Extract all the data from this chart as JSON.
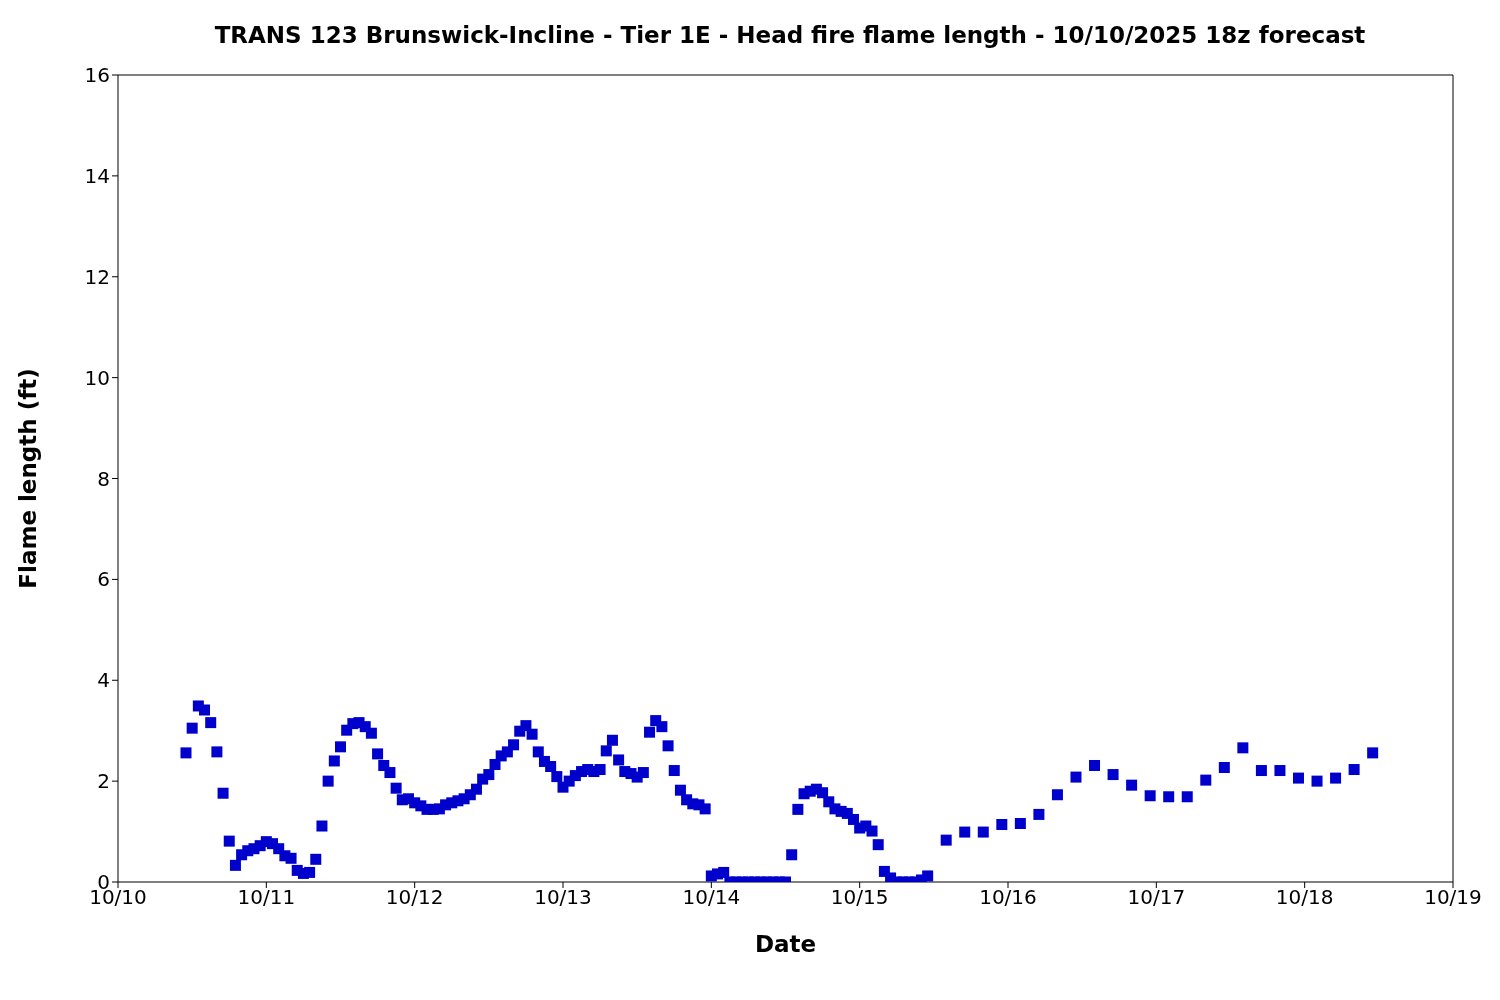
{
  "chart_data": {
    "type": "scatter",
    "title": "TRANS 123 Brunswick-Incline - Tier 1E - Head fire flame length - 10/10/2025 18z forecast",
    "xlabel": "Date",
    "ylabel": "Flame length (ft)",
    "x": [
      "--10-10T11:00",
      "--10-10T12:00",
      "--10-10T13:00",
      "--10-10T14:00",
      "--10-10T15:00",
      "--10-10T16:00",
      "--10-10T17:00",
      "--10-10T18:00",
      "--10-10T19:00",
      "--10-10T20:00",
      "--10-10T21:00",
      "--10-10T22:00",
      "--10-10T23:00",
      "--10-11T00:00",
      "--10-11T01:00",
      "--10-11T02:00",
      "--10-11T03:00",
      "--10-11T04:00",
      "--10-11T05:00",
      "--10-11T06:00",
      "--10-11T07:00",
      "--10-11T08:00",
      "--10-11T09:00",
      "--10-11T10:00",
      "--10-11T11:00",
      "--10-11T12:00",
      "--10-11T13:00",
      "--10-11T14:00",
      "--10-11T15:00",
      "--10-11T16:00",
      "--10-11T17:00",
      "--10-11T18:00",
      "--10-11T19:00",
      "--10-11T20:00",
      "--10-11T21:00",
      "--10-11T22:00",
      "--10-11T23:00",
      "--10-12T00:00",
      "--10-12T01:00",
      "--10-12T02:00",
      "--10-12T03:00",
      "--10-12T04:00",
      "--10-12T05:00",
      "--10-12T06:00",
      "--10-12T07:00",
      "--10-12T08:00",
      "--10-12T09:00",
      "--10-12T10:00",
      "--10-12T11:00",
      "--10-12T12:00",
      "--10-12T13:00",
      "--10-12T14:00",
      "--10-12T15:00",
      "--10-12T16:00",
      "--10-12T17:00",
      "--10-12T18:00",
      "--10-12T19:00",
      "--10-12T20:00",
      "--10-12T21:00",
      "--10-12T22:00",
      "--10-12T23:00",
      "--10-13T00:00",
      "--10-13T01:00",
      "--10-13T02:00",
      "--10-13T03:00",
      "--10-13T04:00",
      "--10-13T05:00",
      "--10-13T06:00",
      "--10-13T07:00",
      "--10-13T08:00",
      "--10-13T09:00",
      "--10-13T10:00",
      "--10-13T11:00",
      "--10-13T12:00",
      "--10-13T13:00",
      "--10-13T14:00",
      "--10-13T15:00",
      "--10-13T16:00",
      "--10-13T17:00",
      "--10-13T18:00",
      "--10-13T19:00",
      "--10-13T20:00",
      "--10-13T21:00",
      "--10-13T22:00",
      "--10-13T23:00",
      "--10-14T00:00",
      "--10-14T01:00",
      "--10-14T02:00",
      "--10-14T03:00",
      "--10-14T04:00",
      "--10-14T05:00",
      "--10-14T06:00",
      "--10-14T07:00",
      "--10-14T08:00",
      "--10-14T09:00",
      "--10-14T10:00",
      "--10-14T11:00",
      "--10-14T12:00",
      "--10-14T13:00",
      "--10-14T14:00",
      "--10-14T15:00",
      "--10-14T16:00",
      "--10-14T17:00",
      "--10-14T18:00",
      "--10-14T19:00",
      "--10-14T20:00",
      "--10-14T21:00",
      "--10-14T22:00",
      "--10-14T23:00",
      "--10-15T00:00",
      "--10-15T01:00",
      "--10-15T02:00",
      "--10-15T03:00",
      "--10-15T04:00",
      "--10-15T05:00",
      "--10-15T06:00",
      "--10-15T07:00",
      "--10-15T08:00",
      "--10-15T09:00",
      "--10-15T10:00",
      "--10-15T11:00",
      "--10-15T14:00",
      "--10-15T17:00",
      "--10-15T20:00",
      "--10-15T23:00",
      "--10-16T02:00",
      "--10-16T05:00",
      "--10-16T08:00",
      "--10-16T11:00",
      "--10-16T14:00",
      "--10-16T17:00",
      "--10-16T20:00",
      "--10-16T23:00",
      "--10-17T02:00",
      "--10-17T05:00",
      "--10-17T08:00",
      "--10-17T11:00",
      "--10-17T14:00",
      "--10-17T17:00",
      "--10-17T20:00",
      "--10-17T23:00",
      "--10-18T02:00",
      "--10-18T05:00",
      "--10-18T08:00",
      "--10-18T11:00"
    ],
    "series": [
      {
        "color": "#0000cc",
        "values": [
          2.56,
          3.05,
          3.49,
          3.41,
          3.16,
          2.58,
          1.76,
          0.81,
          0.33,
          0.54,
          0.62,
          0.66,
          0.72,
          0.8,
          0.76,
          0.66,
          0.52,
          0.47,
          0.23,
          0.17,
          0.19,
          0.45,
          1.11,
          2.0,
          2.4,
          2.68,
          3.01,
          3.14,
          3.16,
          3.08,
          2.95,
          2.54,
          2.31,
          2.17,
          1.86,
          1.63,
          1.65,
          1.57,
          1.51,
          1.44,
          1.44,
          1.45,
          1.53,
          1.57,
          1.61,
          1.65,
          1.73,
          1.84,
          2.04,
          2.13,
          2.33,
          2.5,
          2.58,
          2.72,
          2.99,
          3.1,
          2.93,
          2.58,
          2.39,
          2.29,
          2.09,
          1.88,
          2.0,
          2.11,
          2.19,
          2.23,
          2.19,
          2.23,
          2.6,
          2.81,
          2.42,
          2.19,
          2.15,
          2.08,
          2.17,
          2.97,
          3.2,
          3.08,
          2.7,
          2.21,
          1.82,
          1.63,
          1.55,
          1.53,
          1.45,
          0.12,
          0.16,
          0.19,
          0,
          0,
          0,
          0,
          0,
          0,
          0,
          0,
          0,
          0,
          0.54,
          1.44,
          1.75,
          1.8,
          1.84,
          1.77,
          1.59,
          1.45,
          1.4,
          1.36,
          1.24,
          1.07,
          1.11,
          1.01,
          0.74,
          0.21,
          0.08,
          0,
          0,
          0,
          0,
          0.04,
          0.12,
          0.83,
          0.99,
          0.99,
          1.14,
          1.16,
          1.34,
          1.73,
          2.08,
          2.31,
          2.13,
          1.92,
          1.71,
          1.69,
          1.69,
          2.02,
          2.27,
          2.66,
          2.21,
          2.21,
          2.06,
          2.0,
          2.06,
          2.23,
          2.56
        ]
      }
    ],
    "xlim": [
      "--10-10",
      "--10-19"
    ],
    "xticks": [
      {
        "value": "--10-10",
        "label": "10/10"
      },
      {
        "value": "--10-11",
        "label": "10/11"
      },
      {
        "value": "--10-12",
        "label": "10/12"
      },
      {
        "value": "--10-13",
        "label": "10/13"
      },
      {
        "value": "--10-14",
        "label": "10/14"
      },
      {
        "value": "--10-15",
        "label": "10/15"
      },
      {
        "value": "--10-16",
        "label": "10/16"
      },
      {
        "value": "--10-17",
        "label": "10/17"
      },
      {
        "value": "--10-18",
        "label": "10/18"
      },
      {
        "value": "--10-19",
        "label": "10/19"
      }
    ],
    "ylim": [
      0,
      16
    ],
    "yticks": [
      0,
      2,
      4,
      6,
      8,
      10,
      12,
      14,
      16
    ],
    "marker": "square",
    "grid": false,
    "legend": false
  }
}
